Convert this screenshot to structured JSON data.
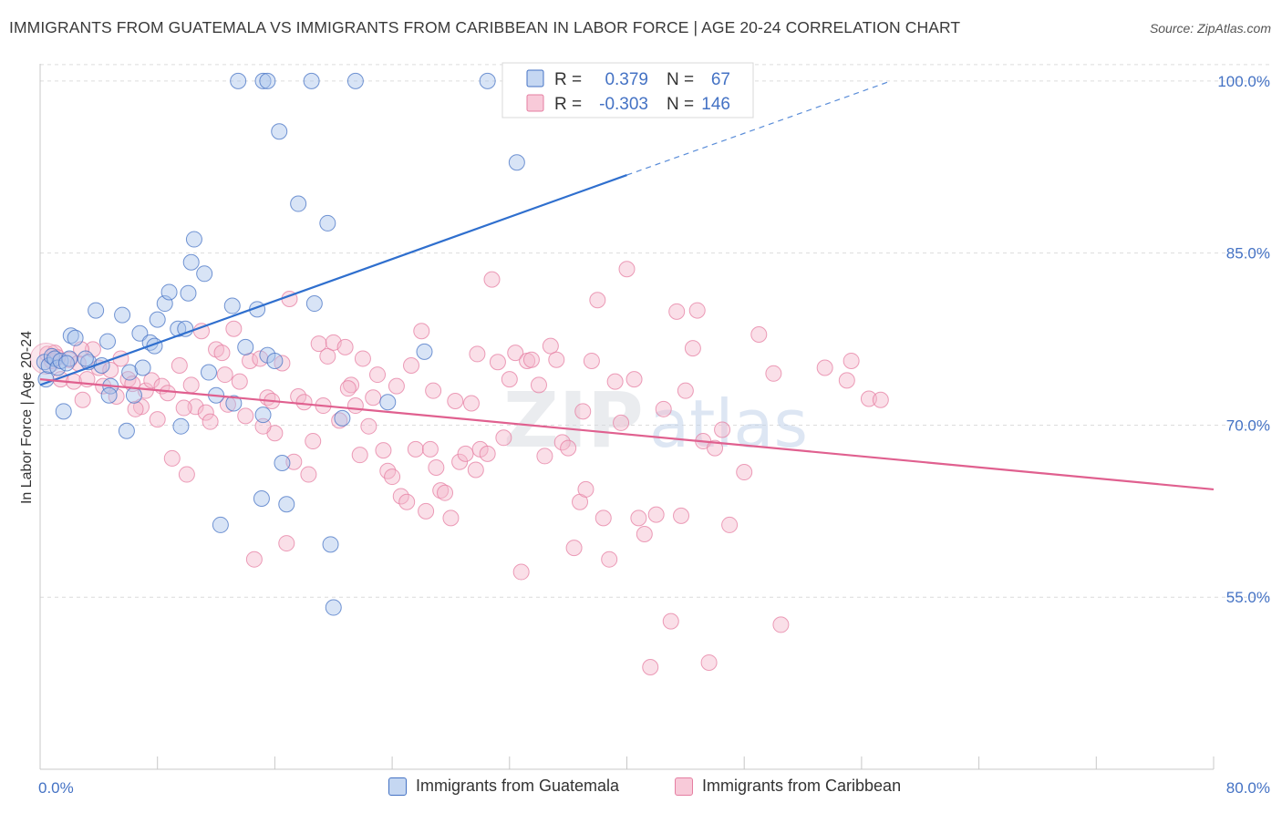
{
  "title": "IMMIGRANTS FROM GUATEMALA VS IMMIGRANTS FROM CARIBBEAN IN LABOR FORCE | AGE 20-24 CORRELATION CHART",
  "source": "Source: ZipAtlas.com",
  "watermark": {
    "zip": "ZIP",
    "atlas": "atlas"
  },
  "colors": {
    "blue": "#4472c4",
    "blue_fill": "#a9c4eb",
    "blue_line": "#2f6fce",
    "pink": "#e57ea1",
    "pink_fill": "#f4b8cb",
    "pink_line": "#e0608f"
  },
  "legend": {
    "r_label": "R =",
    "n_label": "N =",
    "blue": {
      "r": "0.379",
      "n": "67"
    },
    "pink": {
      "r": "-0.303",
      "n": "146"
    }
  },
  "bottom_legend": {
    "blue": "Immigrants from Guatemala",
    "pink": "Immigrants from Caribbean"
  },
  "chart_data": {
    "type": "scatter",
    "title": "IMMIGRANTS FROM GUATEMALA VS IMMIGRANTS FROM CARIBBEAN IN LABOR FORCE | AGE 20-24 CORRELATION CHART",
    "xlabel": "",
    "ylabel": "In Labor Force | Age 20-24",
    "xlim": [
      0,
      80
    ],
    "ylim": [
      40,
      101.5
    ],
    "x_tick_labels": [
      "0.0%",
      "80.0%"
    ],
    "y_ticks": [
      55,
      70,
      85,
      100
    ],
    "y_tick_labels": [
      "55.0%",
      "70.0%",
      "85.0%",
      "100.0%"
    ],
    "grid": true,
    "legend_position": "top-center",
    "series": [
      {
        "name": "Immigrants from Guatemala",
        "color": "#4472c4",
        "trend": {
          "x": [
            0,
            40
          ],
          "y": [
            73.5,
            91.8
          ],
          "dashed_to": [
            58,
            100.0
          ]
        },
        "points": [
          [
            0.3,
            75.5
          ],
          [
            0.4,
            74.0
          ],
          [
            0.6,
            75.2
          ],
          [
            0.8,
            76.0
          ],
          [
            1.0,
            75.8
          ],
          [
            1.2,
            75.0
          ],
          [
            1.4,
            75.6
          ],
          [
            1.6,
            71.2
          ],
          [
            2.0,
            75.8
          ],
          [
            2.1,
            77.8
          ],
          [
            2.4,
            77.6
          ],
          [
            3.3,
            75.5
          ],
          [
            3.8,
            80.0
          ],
          [
            4.2,
            75.2
          ],
          [
            4.6,
            77.3
          ],
          [
            4.8,
            73.4
          ],
          [
            4.7,
            72.6
          ],
          [
            5.6,
            79.6
          ],
          [
            5.9,
            69.5
          ],
          [
            6.1,
            74.6
          ],
          [
            6.4,
            72.6
          ],
          [
            6.8,
            78.0
          ],
          [
            7.0,
            75.0
          ],
          [
            7.5,
            77.2
          ],
          [
            7.8,
            76.9
          ],
          [
            8.0,
            79.2
          ],
          [
            8.5,
            80.6
          ],
          [
            8.8,
            81.6
          ],
          [
            9.4,
            78.4
          ],
          [
            9.6,
            69.9
          ],
          [
            9.9,
            78.4
          ],
          [
            10.1,
            81.5
          ],
          [
            10.3,
            84.2
          ],
          [
            10.5,
            86.2
          ],
          [
            11.2,
            83.2
          ],
          [
            11.5,
            74.6
          ],
          [
            12.0,
            72.6
          ],
          [
            12.3,
            61.3
          ],
          [
            13.1,
            80.4
          ],
          [
            13.2,
            71.9
          ],
          [
            14.0,
            76.8
          ],
          [
            14.8,
            80.1
          ],
          [
            15.1,
            63.6
          ],
          [
            15.2,
            70.9
          ],
          [
            15.5,
            76.1
          ],
          [
            16.0,
            75.6
          ],
          [
            16.3,
            95.6
          ],
          [
            16.5,
            66.7
          ],
          [
            16.8,
            63.1
          ],
          [
            17.6,
            89.3
          ],
          [
            18.7,
            80.6
          ],
          [
            19.6,
            87.6
          ],
          [
            19.8,
            59.6
          ],
          [
            20.6,
            70.6
          ],
          [
            23.7,
            72.0
          ],
          [
            26.2,
            76.4
          ],
          [
            13.5,
            100
          ],
          [
            15.2,
            100
          ],
          [
            15.5,
            100
          ],
          [
            18.5,
            100
          ],
          [
            21.5,
            100
          ],
          [
            30.5,
            100
          ],
          [
            38.5,
            100
          ],
          [
            32.5,
            92.9
          ],
          [
            20,
            54.1
          ],
          [
            1.8,
            75.4
          ],
          [
            3.1,
            75.8
          ]
        ]
      },
      {
        "name": "Immigrants from Caribbean",
        "color": "#e57ea1",
        "trend": {
          "x": [
            0,
            80
          ],
          "y": [
            74.0,
            64.4
          ]
        },
        "points": [
          [
            0.5,
            76.2
          ],
          [
            0.8,
            75.6
          ],
          [
            1.0,
            76.3
          ],
          [
            1.4,
            74.0
          ],
          [
            2.0,
            75.7
          ],
          [
            2.3,
            73.8
          ],
          [
            2.6,
            75.4
          ],
          [
            2.9,
            72.2
          ],
          [
            3.2,
            74.0
          ],
          [
            3.6,
            76.6
          ],
          [
            4.0,
            75.0
          ],
          [
            4.3,
            73.4
          ],
          [
            4.8,
            74.8
          ],
          [
            5.2,
            72.5
          ],
          [
            5.5,
            75.8
          ],
          [
            6.0,
            74.0
          ],
          [
            6.3,
            73.6
          ],
          [
            6.9,
            71.6
          ],
          [
            7.2,
            73.0
          ],
          [
            7.6,
            73.9
          ],
          [
            8.0,
            70.5
          ],
          [
            8.3,
            73.4
          ],
          [
            8.7,
            72.8
          ],
          [
            9.0,
            67.1
          ],
          [
            9.5,
            75.2
          ],
          [
            10.0,
            65.7
          ],
          [
            10.3,
            73.5
          ],
          [
            10.6,
            71.6
          ],
          [
            11.0,
            78.2
          ],
          [
            11.3,
            71.1
          ],
          [
            11.6,
            70.3
          ],
          [
            12.0,
            76.6
          ],
          [
            12.4,
            76.3
          ],
          [
            12.8,
            71.8
          ],
          [
            13.2,
            78.4
          ],
          [
            13.6,
            73.8
          ],
          [
            14.0,
            70.8
          ],
          [
            14.3,
            75.6
          ],
          [
            14.6,
            58.3
          ],
          [
            15.0,
            75.8
          ],
          [
            15.5,
            72.4
          ],
          [
            15.8,
            72.1
          ],
          [
            16.0,
            69.3
          ],
          [
            16.5,
            75.4
          ],
          [
            16.8,
            59.7
          ],
          [
            17.0,
            81.0
          ],
          [
            17.3,
            66.8
          ],
          [
            17.6,
            72.5
          ],
          [
            18.0,
            72.0
          ],
          [
            18.3,
            65.7
          ],
          [
            18.6,
            68.6
          ],
          [
            19.0,
            77.1
          ],
          [
            19.3,
            71.7
          ],
          [
            19.6,
            76.0
          ],
          [
            20.0,
            77.2
          ],
          [
            20.4,
            70.4
          ],
          [
            20.8,
            76.8
          ],
          [
            21.2,
            73.5
          ],
          [
            21.5,
            71.7
          ],
          [
            21.8,
            67.4
          ],
          [
            22.0,
            75.8
          ],
          [
            22.4,
            69.9
          ],
          [
            22.7,
            72.4
          ],
          [
            23.0,
            74.4
          ],
          [
            23.4,
            67.8
          ],
          [
            23.7,
            66.0
          ],
          [
            24.0,
            65.5
          ],
          [
            24.3,
            73.4
          ],
          [
            24.6,
            63.8
          ],
          [
            25.0,
            63.3
          ],
          [
            25.3,
            75.2
          ],
          [
            25.6,
            67.9
          ],
          [
            26.0,
            78.2
          ],
          [
            26.3,
            62.5
          ],
          [
            26.6,
            67.9
          ],
          [
            27.0,
            66.3
          ],
          [
            27.3,
            64.3
          ],
          [
            27.6,
            64.1
          ],
          [
            28.0,
            61.9
          ],
          [
            28.3,
            72.1
          ],
          [
            28.6,
            66.8
          ],
          [
            29.0,
            67.5
          ],
          [
            29.4,
            71.9
          ],
          [
            29.7,
            66.1
          ],
          [
            30.0,
            67.9
          ],
          [
            30.5,
            67.5
          ],
          [
            30.8,
            82.7
          ],
          [
            31.2,
            75.5
          ],
          [
            31.6,
            68.9
          ],
          [
            32.0,
            74.0
          ],
          [
            32.4,
            76.3
          ],
          [
            32.8,
            57.2
          ],
          [
            33.2,
            75.6
          ],
          [
            33.5,
            75.7
          ],
          [
            34.0,
            73.5
          ],
          [
            34.4,
            67.3
          ],
          [
            34.8,
            76.9
          ],
          [
            35.2,
            75.7
          ],
          [
            35.6,
            68.5
          ],
          [
            36.0,
            68.0
          ],
          [
            36.4,
            59.3
          ],
          [
            36.8,
            63.3
          ],
          [
            37.2,
            64.4
          ],
          [
            37.6,
            75.6
          ],
          [
            38.0,
            80.9
          ],
          [
            38.4,
            61.9
          ],
          [
            38.8,
            58.3
          ],
          [
            39.2,
            73.8
          ],
          [
            39.6,
            70.2
          ],
          [
            40.0,
            83.6
          ],
          [
            40.5,
            74.0
          ],
          [
            40.8,
            61.9
          ],
          [
            41.2,
            60.5
          ],
          [
            41.6,
            48.9
          ],
          [
            42.0,
            62.2
          ],
          [
            42.5,
            71.4
          ],
          [
            43.0,
            52.9
          ],
          [
            43.4,
            79.9
          ],
          [
            43.7,
            62.1
          ],
          [
            44.0,
            73.0
          ],
          [
            44.5,
            76.7
          ],
          [
            44.8,
            80.0
          ],
          [
            45.2,
            68.6
          ],
          [
            45.6,
            49.3
          ],
          [
            46.0,
            68.0
          ],
          [
            46.5,
            69.6
          ],
          [
            47.0,
            61.3
          ],
          [
            48.0,
            65.9
          ],
          [
            49.0,
            77.9
          ],
          [
            50.0,
            74.5
          ],
          [
            50.5,
            52.6
          ],
          [
            53.5,
            75.0
          ],
          [
            55.0,
            73.9
          ],
          [
            55.3,
            75.6
          ],
          [
            56.5,
            72.3
          ],
          [
            57.3,
            72.2
          ],
          [
            1.2,
            75.9
          ],
          [
            2.8,
            76.6
          ],
          [
            6.5,
            71.4
          ],
          [
            9.8,
            71.5
          ],
          [
            12.6,
            74.4
          ],
          [
            15.2,
            69.9
          ],
          [
            21.0,
            73.2
          ],
          [
            26.8,
            73.0
          ],
          [
            29.8,
            76.2
          ],
          [
            37.0,
            71.2
          ]
        ]
      }
    ]
  }
}
